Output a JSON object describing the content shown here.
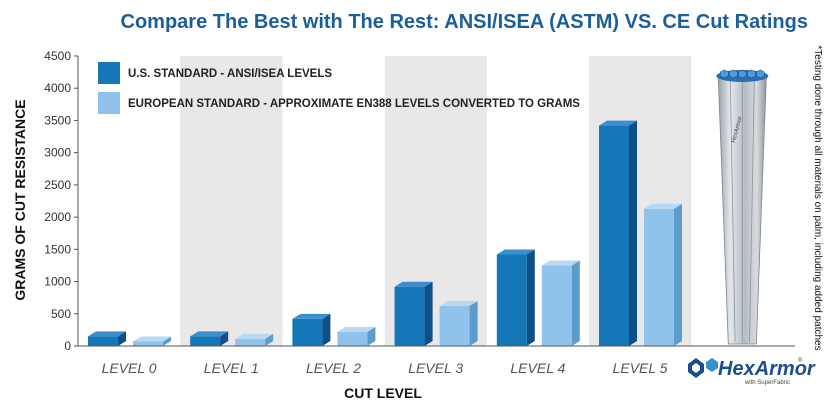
{
  "chart_data": {
    "type": "bar",
    "title": "Compare The Best with The Rest: ANSI/ISEA (ASTM) VS. CE Cut Ratings",
    "xlabel": "CUT LEVEL",
    "ylabel": "GRAMS OF CUT RESISTANCE",
    "ylim": [
      0,
      4500
    ],
    "yticks": [
      0,
      500,
      1000,
      1500,
      2000,
      2500,
      3000,
      3500,
      4000,
      4500
    ],
    "categories": [
      "LEVEL 0",
      "LEVEL 1",
      "LEVEL 2",
      "LEVEL 3",
      "LEVEL 4",
      "LEVEL 5"
    ],
    "series": [
      {
        "name": "U.S. STANDARD - ANSI/ISEA LEVELS",
        "color": "#1577b8",
        "color_side": "#0e4f86",
        "color_top": "#3a8fd0",
        "values": [
          150,
          150,
          420,
          920,
          1420,
          3420
        ]
      },
      {
        "name": "EUROPEAN STANDARD - APPROXIMATE EN388 LEVELS CONVERTED TO GRAMS",
        "color": "#8fc3ec",
        "color_side": "#5c9ccc",
        "color_top": "#b7d9f4",
        "values": [
          70,
          110,
          220,
          620,
          1250,
          2130
        ]
      }
    ],
    "legend_position": "top-left",
    "grid": false,
    "band_color": "#e8e8e8",
    "footnote": "*Testing done through all materials on palm, including added patches",
    "brand": {
      "name": "HexArmor",
      "sub": "with SuperFabric",
      "mark": "®",
      "bar_label": "HexArmor"
    }
  }
}
